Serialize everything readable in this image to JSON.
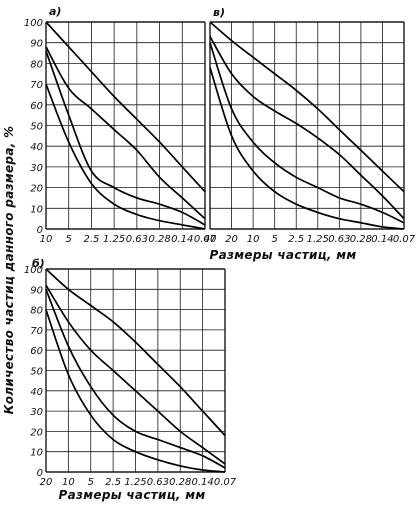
{
  "axis_labels": {
    "ylabel": "Количество частиц данного размера, %",
    "xlabel": "Размеры частиц, мм",
    "xlabel_bottom": "Размеры частиц, мм"
  },
  "chart_data": [
    {
      "type": "line",
      "panel": "а)",
      "xlabel": "",
      "ylabel": "",
      "x_ticks": [
        "10",
        "5",
        "2.5",
        "1.25",
        "0.63",
        "0.28",
        "0.14",
        "0.07"
      ],
      "y_ticks": [
        "100",
        "90",
        "80",
        "70",
        "60",
        "50",
        "40",
        "30",
        "20",
        "10",
        "0"
      ],
      "ylim": [
        0,
        100
      ],
      "grid": true,
      "x_scale": "categorical (sieve sizes)",
      "x": [
        "10",
        "5",
        "2.5",
        "1.25",
        "0.63",
        "0.28",
        "0.14",
        "0.07"
      ],
      "series": [
        {
          "values": [
            100,
            88,
            76,
            64,
            53,
            42,
            30,
            18
          ]
        },
        {
          "values": [
            88,
            68,
            58,
            48,
            38,
            25,
            15,
            5
          ]
        },
        {
          "values": [
            86,
            55,
            28,
            20,
            15,
            12,
            8,
            2
          ]
        },
        {
          "values": [
            70,
            42,
            22,
            12,
            7,
            4,
            2,
            0
          ]
        }
      ]
    },
    {
      "type": "line",
      "panel": "в)",
      "xlabel": "",
      "ylabel": "",
      "x_ticks": [
        "40",
        "20",
        "10",
        "5",
        "2.5",
        "1.25",
        "0.63",
        "0.28",
        "0.14",
        "0.07"
      ],
      "y_ticks": [],
      "ylim": [
        0,
        100
      ],
      "grid": true,
      "x_scale": "categorical (sieve sizes)",
      "x": [
        "40",
        "20",
        "10",
        "5",
        "2.5",
        "1.25",
        "0.63",
        "0.28",
        "0.14",
        "0.07"
      ],
      "series": [
        {
          "values": [
            100,
            91,
            83,
            75,
            67,
            58,
            48,
            38,
            28,
            18
          ]
        },
        {
          "values": [
            93,
            75,
            64,
            57,
            51,
            44,
            36,
            26,
            16,
            5
          ]
        },
        {
          "values": [
            90,
            58,
            42,
            32,
            25,
            20,
            15,
            12,
            8,
            3
          ]
        },
        {
          "values": [
            78,
            45,
            28,
            18,
            12,
            8,
            5,
            3,
            1,
            0
          ]
        }
      ]
    },
    {
      "type": "line",
      "panel": "б)",
      "xlabel": "",
      "ylabel": "",
      "x_ticks": [
        "20",
        "10",
        "5",
        "2.5",
        "1.25",
        "0.63",
        "0.28",
        "0.14",
        "0.07"
      ],
      "y_ticks": [
        "100",
        "90",
        "80",
        "70",
        "60",
        "50",
        "40",
        "30",
        "20",
        "10",
        "0"
      ],
      "ylim": [
        0,
        100
      ],
      "grid": true,
      "x_scale": "categorical (sieve sizes)",
      "x": [
        "20",
        "10",
        "5",
        "2.5",
        "1.25",
        "0.63",
        "0.28",
        "0.14",
        "0.07"
      ],
      "series": [
        {
          "values": [
            100,
            90,
            82,
            74,
            64,
            53,
            42,
            30,
            18
          ]
        },
        {
          "values": [
            92,
            74,
            60,
            50,
            40,
            30,
            20,
            12,
            4
          ]
        },
        {
          "values": [
            90,
            62,
            42,
            28,
            20,
            16,
            12,
            8,
            2
          ]
        },
        {
          "values": [
            80,
            48,
            28,
            16,
            10,
            6,
            3,
            1,
            0
          ]
        }
      ]
    }
  ]
}
